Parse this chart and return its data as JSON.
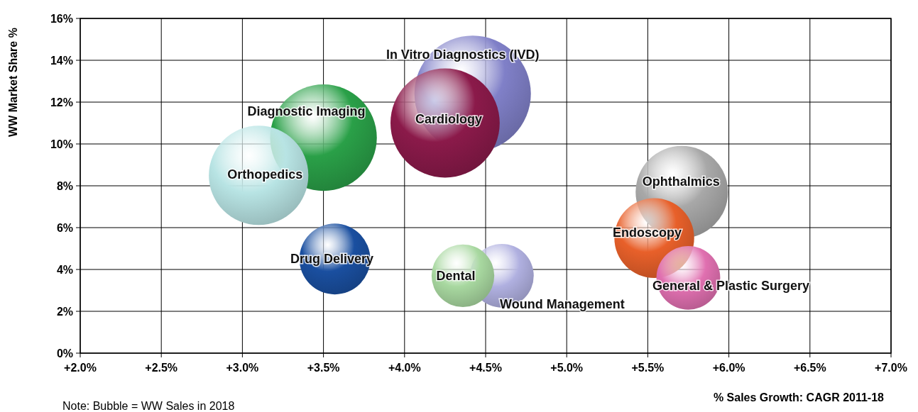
{
  "chart_data": {
    "type": "bubble",
    "xlabel": "% Sales Growth: CAGR 2011-18",
    "ylabel": "WW Market Share %",
    "annotations": [
      "Note: Bubble = WW Sales in 2018"
    ],
    "xlim": [
      2,
      7
    ],
    "ylim": [
      0,
      16
    ],
    "xticks": [
      {
        "value": 2,
        "label": "+2.0%"
      },
      {
        "value": 2.5,
        "label": "+2.5%"
      },
      {
        "value": 3,
        "label": "+3.0%"
      },
      {
        "value": 3.5,
        "label": "+3.5%"
      },
      {
        "value": 4,
        "label": "+4.0%"
      },
      {
        "value": 4.5,
        "label": "+4.5%"
      },
      {
        "value": 5,
        "label": "+5.0%"
      },
      {
        "value": 5.5,
        "label": "+5.5%"
      },
      {
        "value": 6,
        "label": "+6.0%"
      },
      {
        "value": 6.5,
        "label": "+6.5%"
      },
      {
        "value": 7,
        "label": "+7.0%"
      }
    ],
    "yticks": [
      {
        "value": 0,
        "label": "0%"
      },
      {
        "value": 2,
        "label": "2%"
      },
      {
        "value": 4,
        "label": "4%"
      },
      {
        "value": 6,
        "label": "6%"
      },
      {
        "value": 8,
        "label": "8%"
      },
      {
        "value": 10,
        "label": "10%"
      },
      {
        "value": 12,
        "label": "12%"
      },
      {
        "value": 14,
        "label": "14%"
      },
      {
        "value": 16,
        "label": "16%"
      }
    ],
    "grid": true,
    "series": [
      {
        "name": "In Vitro Diagnostics (IVD)",
        "color": "#8080c8",
        "x": [
          4.42
        ],
        "values": [
          12.4
        ],
        "sizes": [
          1
        ]
      },
      {
        "name": "Cardiology",
        "color": "#8b1a4a",
        "x": [
          4.25
        ],
        "values": [
          11.0
        ],
        "sizes": [
          0.88
        ]
      },
      {
        "name": "Diagnostic Imaging",
        "color": "#2aa048",
        "x": [
          3.5
        ],
        "values": [
          10.3
        ],
        "sizes": [
          0.84
        ]
      },
      {
        "name": "Orthopedics",
        "color": "#b8e4e4",
        "x": [
          3.1
        ],
        "values": [
          8.5
        ],
        "sizes": [
          0.73
        ]
      },
      {
        "name": "Drug Delivery",
        "color": "#1a4fa0",
        "x": [
          3.57
        ],
        "values": [
          4.5
        ],
        "sizes": [
          0.37
        ]
      },
      {
        "name": "Wound Management",
        "color": "#b0b0e0",
        "x": [
          4.6
        ],
        "values": [
          3.7
        ],
        "sizes": [
          0.3
        ]
      },
      {
        "name": "Dental",
        "color": "#a8d8a0",
        "x": [
          4.36
        ],
        "values": [
          3.7
        ],
        "sizes": [
          0.29
        ]
      },
      {
        "name": "Ophthalmics",
        "color": "#a8a8a8",
        "x": [
          5.71
        ],
        "values": [
          7.7
        ],
        "sizes": [
          0.63
        ]
      },
      {
        "name": "Endoscopy",
        "color": "#e8602a",
        "x": [
          5.54
        ],
        "values": [
          5.5
        ],
        "sizes": [
          0.47
        ]
      },
      {
        "name": "General & Plastic Surgery",
        "color": "#e070b0",
        "x": [
          5.75
        ],
        "values": [
          3.6
        ],
        "sizes": [
          0.3
        ]
      }
    ]
  }
}
